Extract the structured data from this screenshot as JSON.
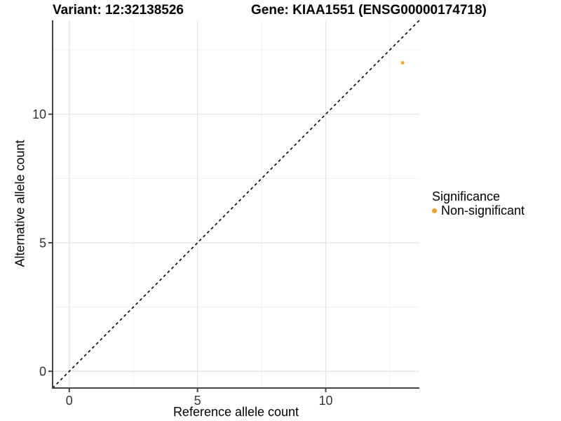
{
  "figure": {
    "title_left": "Variant: 12:32138526",
    "title_right": "Gene: KIAA1551 (ENSG00000174718)"
  },
  "chart_data": {
    "type": "scatter",
    "title": "Variant: 12:32138526    Gene: KIAA1551 (ENSG00000174718)",
    "xlabel": "Reference allele count",
    "ylabel": "Alternative allele count",
    "xlim": [
      -0.65,
      13.65
    ],
    "ylim": [
      -0.65,
      13.65
    ],
    "x_major_ticks": [
      0,
      5,
      10
    ],
    "y_major_ticks": [
      0,
      5,
      10
    ],
    "minor_gridlines": [
      2.5,
      7.5,
      12.5
    ],
    "grid": true,
    "points": [
      {
        "x": 13,
        "y": 12,
        "series": "Non-significant"
      }
    ],
    "identity_line": {
      "slope": 1,
      "intercept": 0,
      "style": "dashed",
      "color": "#000000"
    },
    "legend": {
      "title": "Significance",
      "position": "right",
      "items": [
        {
          "label": "Non-significant",
          "color": "#FBA226"
        }
      ]
    },
    "colors": {
      "point": "#FBA226",
      "grid_major": "#e3e3e3",
      "grid_minor": "#efefef",
      "axis_line": "#454545",
      "tick_text": "#333333",
      "background": "#ffffff"
    }
  }
}
